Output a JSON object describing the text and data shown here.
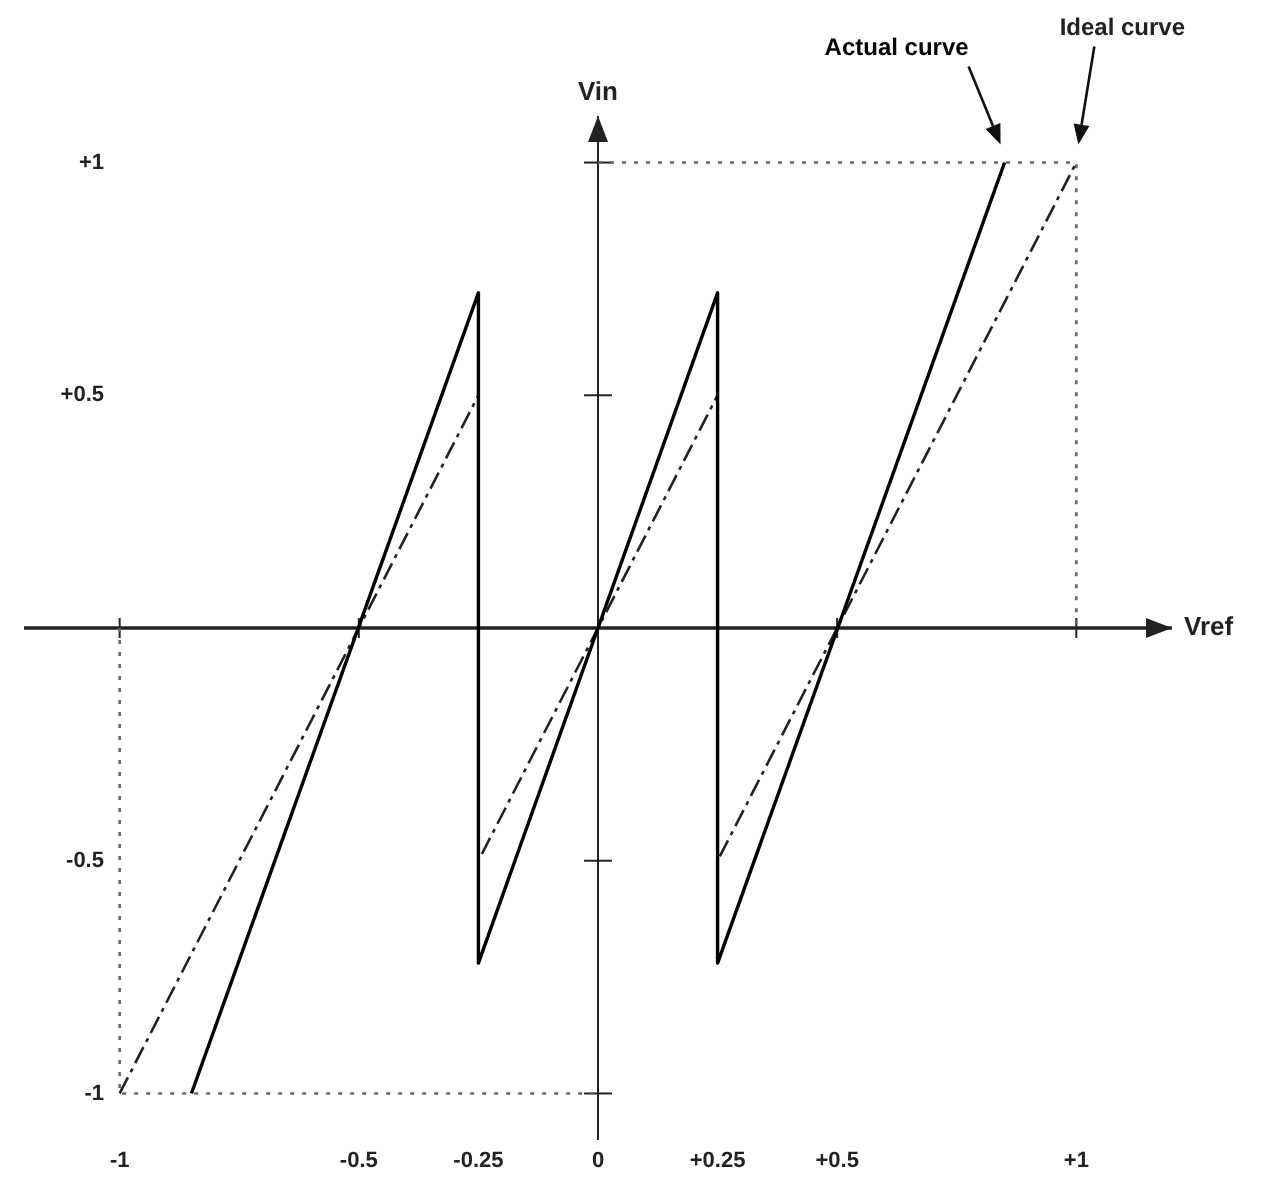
{
  "chart_data": {
    "type": "line",
    "xlabel": "Vref",
    "ylabel": "Vin",
    "xlim": [
      -1.2,
      1.2
    ],
    "ylim": [
      -1.1,
      1.1
    ],
    "xticks": [
      -1,
      -0.5,
      -0.25,
      0,
      {
        "value": 0.25,
        "label": "+0.25"
      },
      {
        "value": 0.5,
        "label": "+0.5"
      },
      {
        "value": 1,
        "label": "+1"
      }
    ],
    "yticks": [
      -1,
      -0.5,
      {
        "value": 0.5,
        "label": "+0.5"
      },
      {
        "value": 1,
        "label": "+1"
      }
    ],
    "legend": false,
    "marker": "none",
    "series": [
      {
        "name": "Actual curve",
        "color": "#000000",
        "line_style": "solid",
        "x": [
          -0.85,
          -0.25,
          -0.25,
          0.25,
          0.25,
          0.85
        ],
        "values": [
          -1,
          0.72,
          -0.72,
          0.72,
          -0.72,
          1
        ]
      },
      {
        "name": "Ideal curve",
        "color": "#222222",
        "line_style": "dashed",
        "x": [
          -1,
          -0.25,
          -0.25,
          0.25,
          0.25,
          1
        ],
        "values": [
          -1,
          0.5,
          -0.5,
          0.5,
          -0.5,
          1
        ]
      },
      {
        "color": "#666666",
        "line_style": "dotted",
        "x": [
          -1,
          -1,
          0
        ],
        "values": [
          0,
          -1,
          -1
        ]
      },
      {
        "color": "#666666",
        "line_style": "dotted",
        "x": [
          0,
          1,
          1
        ],
        "values": [
          1,
          1,
          0
        ]
      }
    ]
  }
}
